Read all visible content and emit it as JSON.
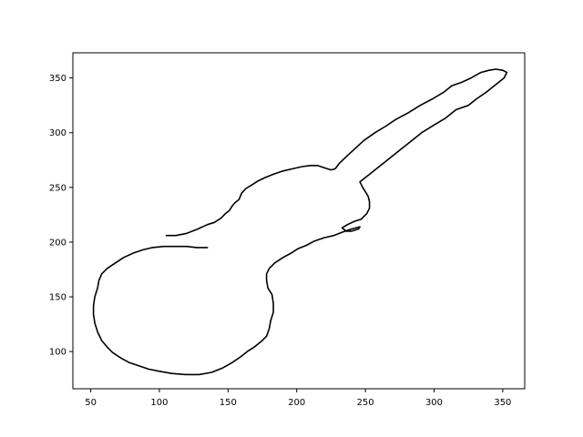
{
  "chart_data": {
    "type": "line",
    "title": "",
    "xlabel": "",
    "ylabel": "",
    "xlim": [
      37,
      366
    ],
    "ylim": [
      66,
      373
    ],
    "xticks": [
      50,
      100,
      150,
      200,
      250,
      300,
      350
    ],
    "yticks": [
      100,
      150,
      200,
      250,
      300,
      350
    ],
    "grid": false,
    "legend": null,
    "series": [
      {
        "color": "#000000",
        "points": [
          [
            105,
            206
          ],
          [
            112,
            206
          ],
          [
            120,
            208
          ],
          [
            128,
            212
          ],
          [
            135,
            216
          ],
          [
            140,
            218
          ],
          [
            145,
            222
          ],
          [
            148,
            226
          ],
          [
            151,
            229
          ],
          [
            153,
            233
          ],
          [
            155,
            236
          ],
          [
            158,
            239
          ],
          [
            160,
            245
          ],
          [
            163,
            249
          ],
          [
            167,
            252
          ],
          [
            172,
            256
          ],
          [
            177,
            259
          ],
          [
            183,
            262
          ],
          [
            190,
            265
          ],
          [
            197,
            267
          ],
          [
            204,
            269
          ],
          [
            210,
            270
          ],
          [
            215,
            270
          ],
          [
            220,
            268
          ],
          [
            225,
            266
          ],
          [
            228,
            267
          ],
          [
            231,
            272
          ],
          [
            236,
            278
          ],
          [
            242,
            285
          ],
          [
            249,
            293
          ],
          [
            257,
            300
          ],
          [
            265,
            306
          ],
          [
            272,
            312
          ],
          [
            281,
            318
          ],
          [
            290,
            325
          ],
          [
            299,
            331
          ],
          [
            307,
            337
          ],
          [
            313,
            343
          ],
          [
            320,
            346
          ],
          [
            327,
            350
          ],
          [
            334,
            355
          ],
          [
            340,
            357
          ],
          [
            345,
            358
          ],
          [
            350,
            357
          ],
          [
            353,
            355
          ],
          [
            351,
            350
          ],
          [
            345,
            344
          ],
          [
            338,
            337
          ],
          [
            331,
            331
          ],
          [
            325,
            325
          ],
          [
            316,
            321
          ],
          [
            308,
            313
          ],
          [
            300,
            307
          ],
          [
            291,
            300
          ],
          [
            283,
            292
          ],
          [
            276,
            285
          ],
          [
            270,
            279
          ],
          [
            264,
            273
          ],
          [
            258,
            267
          ],
          [
            255,
            264
          ],
          [
            250,
            259
          ],
          [
            246,
            255
          ],
          [
            248,
            250
          ],
          [
            250,
            246
          ],
          [
            252,
            242
          ],
          [
            253,
            237
          ],
          [
            253,
            231
          ],
          [
            251,
            226
          ],
          [
            247,
            221
          ],
          [
            242,
            219
          ],
          [
            237,
            216
          ],
          [
            233,
            213
          ],
          [
            236,
            210
          ],
          [
            240,
            210
          ],
          [
            245,
            212
          ],
          [
            246,
            214
          ],
          [
            240,
            212
          ],
          [
            233,
            209
          ],
          [
            227,
            206
          ],
          [
            220,
            204
          ],
          [
            213,
            201
          ],
          [
            207,
            197
          ],
          [
            201,
            194
          ],
          [
            196,
            190
          ],
          [
            190,
            186
          ],
          [
            184,
            181
          ],
          [
            180,
            176
          ],
          [
            178,
            171
          ],
          [
            178,
            165
          ],
          [
            179,
            158
          ],
          [
            182,
            152
          ],
          [
            183,
            144
          ],
          [
            183,
            136
          ],
          [
            181,
            128
          ],
          [
            180,
            121
          ],
          [
            178,
            114
          ],
          [
            174,
            109
          ],
          [
            169,
            104
          ],
          [
            164,
            100
          ],
          [
            159,
            95
          ],
          [
            153,
            90
          ],
          [
            146,
            85
          ],
          [
            138,
            81
          ],
          [
            129,
            79
          ],
          [
            119,
            79
          ],
          [
            109,
            80
          ],
          [
            100,
            82
          ],
          [
            92,
            84
          ],
          [
            85,
            87
          ],
          [
            78,
            90
          ],
          [
            72,
            94
          ],
          [
            66,
            99
          ],
          [
            62,
            104
          ],
          [
            58,
            110
          ],
          [
            55,
            118
          ],
          [
            53,
            126
          ],
          [
            52,
            134
          ],
          [
            52,
            142
          ],
          [
            53,
            150
          ],
          [
            55,
            158
          ],
          [
            56,
            165
          ],
          [
            58,
            171
          ],
          [
            62,
            176
          ],
          [
            68,
            181
          ],
          [
            74,
            186
          ],
          [
            81,
            190
          ],
          [
            88,
            193
          ],
          [
            95,
            195
          ],
          [
            103,
            196
          ],
          [
            112,
            196
          ],
          [
            120,
            196
          ],
          [
            127,
            195
          ],
          [
            135,
            195
          ]
        ]
      }
    ]
  }
}
